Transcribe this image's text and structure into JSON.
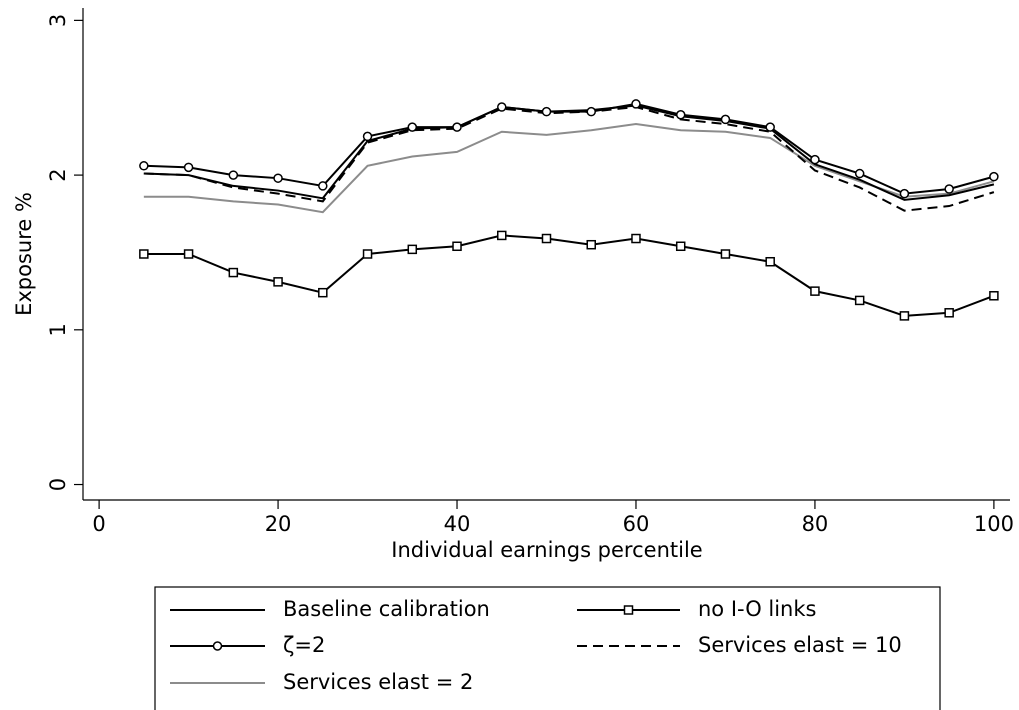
{
  "chart_data": {
    "type": "line",
    "x_label": "Individual earnings percentile",
    "y_label": "Exposure %",
    "x": [
      5,
      10,
      15,
      20,
      25,
      30,
      35,
      40,
      45,
      50,
      55,
      60,
      65,
      70,
      75,
      80,
      85,
      90,
      95,
      100
    ],
    "xlim": [
      -1.8,
      101.8
    ],
    "xticks": [
      0,
      20,
      40,
      60,
      80,
      100
    ],
    "ylim": [
      -0.1,
      3.08
    ],
    "yticks": [
      0,
      1,
      2,
      3
    ],
    "series": [
      {
        "name": "Baseline calibration",
        "color": "#000000",
        "dash": "solid",
        "marker": "none",
        "values": [
          2.01,
          2.0,
          1.93,
          1.9,
          1.85,
          2.22,
          2.3,
          2.31,
          2.44,
          2.41,
          2.42,
          2.45,
          2.38,
          2.35,
          2.3,
          2.07,
          1.97,
          1.84,
          1.87,
          1.94
        ]
      },
      {
        "name": "no I-O links",
        "color": "#000000",
        "dash": "solid",
        "marker": "square",
        "values": [
          1.49,
          1.49,
          1.37,
          1.31,
          1.24,
          1.49,
          1.52,
          1.54,
          1.61,
          1.59,
          1.55,
          1.59,
          1.54,
          1.49,
          1.44,
          1.25,
          1.19,
          1.09,
          1.11,
          1.22
        ]
      },
      {
        "name": "ζ=2",
        "color": "#000000",
        "dash": "solid",
        "marker": "circle",
        "values": [
          2.06,
          2.05,
          2.0,
          1.98,
          1.93,
          2.25,
          2.31,
          2.31,
          2.44,
          2.41,
          2.41,
          2.46,
          2.39,
          2.36,
          2.31,
          2.1,
          2.01,
          1.88,
          1.91,
          1.99
        ]
      },
      {
        "name": "Services elast = 10",
        "color": "#000000",
        "dash": "dashed",
        "marker": "none",
        "values": [
          2.01,
          2.0,
          1.92,
          1.88,
          1.83,
          2.21,
          2.29,
          2.3,
          2.43,
          2.4,
          2.41,
          2.44,
          2.36,
          2.33,
          2.28,
          2.03,
          1.92,
          1.77,
          1.8,
          1.89
        ]
      },
      {
        "name": "Services elast = 2",
        "color": "#8c8c8c",
        "dash": "solid",
        "marker": "none",
        "values": [
          1.86,
          1.86,
          1.83,
          1.81,
          1.76,
          2.06,
          2.12,
          2.15,
          2.28,
          2.26,
          2.29,
          2.33,
          2.29,
          2.28,
          2.24,
          2.06,
          1.96,
          1.86,
          1.88,
          1.96
        ]
      }
    ]
  }
}
